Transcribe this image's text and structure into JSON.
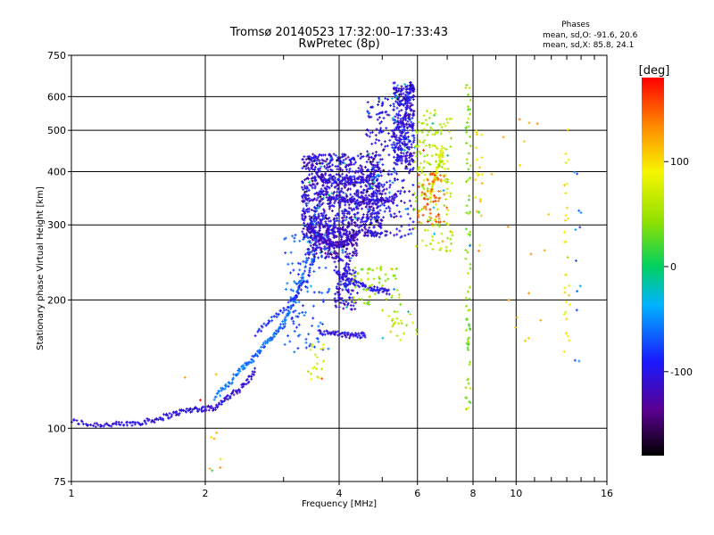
{
  "chart_data": {
    "type": "scatter",
    "title": "Tromsø 20140523 17:32:00–17:33:43",
    "subtitle": "RwPretec (8p)",
    "xlabel": "Frequency [MHz]",
    "ylabel": "Stationary phase Virtual Height [km]",
    "xscale": "log",
    "yscale": "log",
    "xlim": [
      1,
      16
    ],
    "ylim": [
      75,
      750
    ],
    "x_ticks": [
      1,
      2,
      4,
      6,
      8,
      10,
      16
    ],
    "x_tick_labels": [
      "1",
      "2",
      "4",
      "6",
      "8",
      "10",
      "16"
    ],
    "x_minor_ticks": [
      3,
      5,
      7,
      9,
      11,
      12,
      13,
      14,
      15
    ],
    "y_ticks": [
      75,
      100,
      200,
      300,
      400,
      500,
      600,
      750
    ],
    "y_tick_labels": [
      "75",
      "100",
      "200",
      "300",
      "400",
      "500",
      "600",
      "750"
    ],
    "grid": true,
    "phase_stats": {
      "title": "Phases",
      "line_o": "mean, sd,O: -91.6, 20.6",
      "line_x": "mean, sd,X: 85.8, 24.1"
    },
    "colorbar": {
      "label": "[deg]",
      "range": [
        -180,
        180
      ],
      "ticks": [
        100,
        0,
        -100
      ],
      "tick_labels": [
        "100",
        "0",
        "-100"
      ]
    },
    "traces": [
      {
        "x": [
          1.0,
          1.1,
          1.2,
          1.3,
          1.4,
          1.5,
          1.6,
          1.7,
          1.8,
          1.9,
          2.0,
          2.1,
          2.2,
          2.3,
          2.4,
          2.5,
          2.6
        ],
        "y": [
          104,
          102,
          102,
          102,
          103,
          104,
          106,
          108,
          110,
          111,
          111,
          112,
          116,
          120,
          124,
          130,
          137
        ],
        "phase": -105
      },
      {
        "x": [
          2.1,
          2.2,
          2.3,
          2.4,
          2.5,
          2.6,
          2.7,
          2.8,
          2.9,
          3.0,
          3.1,
          3.2,
          3.3,
          3.4,
          3.5,
          3.6
        ],
        "y": [
          118,
          124,
          130,
          138,
          142,
          148,
          156,
          162,
          168,
          176,
          190,
          205,
          225,
          255,
          300,
          340
        ],
        "phase": -60
      },
      {
        "x": [
          2.6,
          2.8,
          3.0,
          3.2,
          3.4,
          3.5,
          3.6,
          3.7
        ],
        "y": [
          165,
          180,
          190,
          205,
          225,
          250,
          280,
          320
        ],
        "phase": -85
      },
      {
        "x": [
          3.4,
          3.5,
          3.6,
          3.7,
          3.8,
          3.9,
          4.0,
          4.1,
          4.2,
          4.3,
          4.4
        ],
        "y": [
          300,
          288,
          280,
          275,
          272,
          270,
          270,
          271,
          274,
          280,
          290
        ],
        "phase": -115
      },
      {
        "x": [
          3.6,
          3.8,
          4.0,
          4.2,
          4.4,
          4.6,
          4.8,
          5.0,
          5.2,
          5.4
        ],
        "y": [
          360,
          350,
          345,
          342,
          340,
          338,
          340,
          342,
          345,
          350
        ],
        "phase": -110
      },
      {
        "x": [
          3.6,
          3.8,
          4.0,
          4.2,
          4.4,
          4.6,
          4.8
        ],
        "y": [
          385,
          380,
          378,
          380,
          382,
          384,
          388
        ],
        "phase": -105
      },
      {
        "x": [
          4.0,
          4.2,
          4.4,
          4.6,
          4.8,
          5.0,
          5.2
        ],
        "y": [
          230,
          222,
          218,
          214,
          212,
          210,
          208
        ],
        "phase": -100
      },
      {
        "x": [
          3.6,
          3.8,
          4.0,
          4.2,
          4.4,
          4.6
        ],
        "y": [
          168,
          167,
          166,
          165,
          165,
          166
        ],
        "phase": -105
      },
      {
        "x": [
          5.4,
          5.5,
          5.6,
          5.7,
          5.8,
          5.9
        ],
        "y": [
          420,
          470,
          530,
          590,
          640,
          620
        ],
        "phase": -100
      },
      {
        "x": [
          6.4,
          6.5,
          6.6,
          6.7,
          6.8,
          7.0
        ],
        "y": [
          350,
          370,
          390,
          420,
          450,
          360
        ],
        "phase": 80
      }
    ],
    "clusters": [
      {
        "x": [
          3.3,
          5.0
        ],
        "y": [
          280,
          440
        ],
        "n": 900,
        "phase": -108
      },
      {
        "x": [
          3.4,
          4.4
        ],
        "y": [
          250,
          300
        ],
        "n": 220,
        "phase": -115
      },
      {
        "x": [
          4.6,
          5.9
        ],
        "y": [
          280,
          600
        ],
        "n": 300,
        "phase": -100
      },
      {
        "x": [
          5.3,
          5.9
        ],
        "y": [
          420,
          650
        ],
        "n": 250,
        "phase": -105
      },
      {
        "x": [
          3.9,
          4.4
        ],
        "y": [
          190,
          250
        ],
        "n": 120,
        "phase": -105
      },
      {
        "x": [
          4.3,
          5.5
        ],
        "y": [
          195,
          240
        ],
        "n": 60,
        "phase": 50
      },
      {
        "x": [
          3.0,
          3.8
        ],
        "y": [
          150,
          290
        ],
        "n": 120,
        "phase": -70
      },
      {
        "x": [
          5.9,
          7.2
        ],
        "y": [
          260,
          560
        ],
        "n": 180,
        "phase": 60
      },
      {
        "x": [
          6.0,
          7.0
        ],
        "y": [
          300,
          400
        ],
        "n": 60,
        "phase": 150
      },
      {
        "x": [
          7.7,
          7.9
        ],
        "y": [
          110,
          640
        ],
        "n": 80,
        "phase": 40
      },
      {
        "x": [
          5.0,
          6.0
        ],
        "y": [
          160,
          190
        ],
        "n": 25,
        "phase": 60
      },
      {
        "x": [
          8.1,
          8.4
        ],
        "y": [
          300,
          500
        ],
        "n": 20,
        "phase": 100
      },
      {
        "x": [
          12.8,
          13.2
        ],
        "y": [
          150,
          560
        ],
        "n": 30,
        "phase": 90
      },
      {
        "x": [
          13.5,
          14.0
        ],
        "y": [
          110,
          420
        ],
        "n": 12,
        "phase": -60
      },
      {
        "x": [
          8.2,
          12.0
        ],
        "y": [
          150,
          590
        ],
        "n": 20,
        "phase": 120
      },
      {
        "x": [
          1.8,
          2.2
        ],
        "y": [
          78,
          140
        ],
        "n": 10,
        "phase": 120
      },
      {
        "x": [
          3.4,
          3.7
        ],
        "y": [
          130,
          160
        ],
        "n": 20,
        "phase": 70
      }
    ]
  }
}
